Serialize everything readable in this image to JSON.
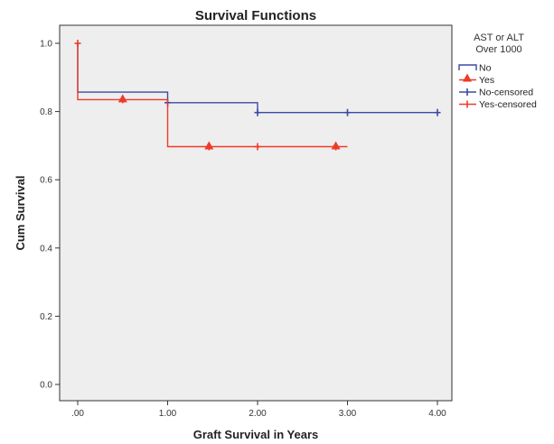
{
  "chart_data": {
    "type": "line",
    "title": "Survival Functions",
    "xlabel": "Graft Survival in Years",
    "ylabel": "Cum Survival",
    "xlim": [
      0,
      4.1
    ],
    "ylim": [
      0,
      1.05
    ],
    "xticks": [
      {
        "value": 0,
        "label": ".00"
      },
      {
        "value": 1,
        "label": "1.00"
      },
      {
        "value": 2,
        "label": "2.00"
      },
      {
        "value": 3,
        "label": "3.00"
      },
      {
        "value": 4,
        "label": "4.00"
      }
    ],
    "yticks": [
      {
        "value": 0,
        "label": "0.0"
      },
      {
        "value": 0.2,
        "label": "0.2"
      },
      {
        "value": 0.4,
        "label": "0.4"
      },
      {
        "value": 0.6,
        "label": "0.6"
      },
      {
        "value": 0.8,
        "label": "0.8"
      },
      {
        "value": 1.0,
        "label": "1.0"
      }
    ],
    "grid": false,
    "legend_title": [
      "AST or ALT",
      "Over 1000"
    ],
    "legend_position": "right",
    "series": [
      {
        "name": "No",
        "color": "#3a4aa6",
        "steps": [
          [
            0,
            1.0
          ],
          [
            0,
            0.857
          ],
          [
            1.0,
            0.857
          ],
          [
            1.0,
            0.826
          ],
          [
            2.0,
            0.826
          ],
          [
            2.0,
            0.797
          ],
          [
            4.0,
            0.797
          ]
        ],
        "censored": [
          [
            1.0,
            0.826
          ],
          [
            2.0,
            0.797
          ],
          [
            3.0,
            0.797
          ],
          [
            4.0,
            0.797
          ]
        ]
      },
      {
        "name": "Yes",
        "color": "#ee3a2a",
        "steps": [
          [
            0,
            1.0
          ],
          [
            0,
            0.835
          ],
          [
            1.0,
            0.835
          ],
          [
            1.0,
            0.697
          ],
          [
            3.0,
            0.697
          ]
        ],
        "censored": [
          [
            0,
            1.0
          ],
          [
            0.5,
            0.835
          ],
          [
            1.46,
            0.697
          ],
          [
            2.0,
            0.697
          ],
          [
            2.87,
            0.697
          ]
        ]
      }
    ],
    "legend": [
      {
        "label": "No",
        "kind": "line",
        "color": "#3a4aa6"
      },
      {
        "label": "Yes",
        "kind": "line",
        "color": "#ee3a2a"
      },
      {
        "label": "No-censored",
        "kind": "cross",
        "color": "#3a4aa6"
      },
      {
        "label": "Yes-censored",
        "kind": "cross",
        "color": "#ee3a2a"
      }
    ],
    "background": "#eeeeee"
  }
}
